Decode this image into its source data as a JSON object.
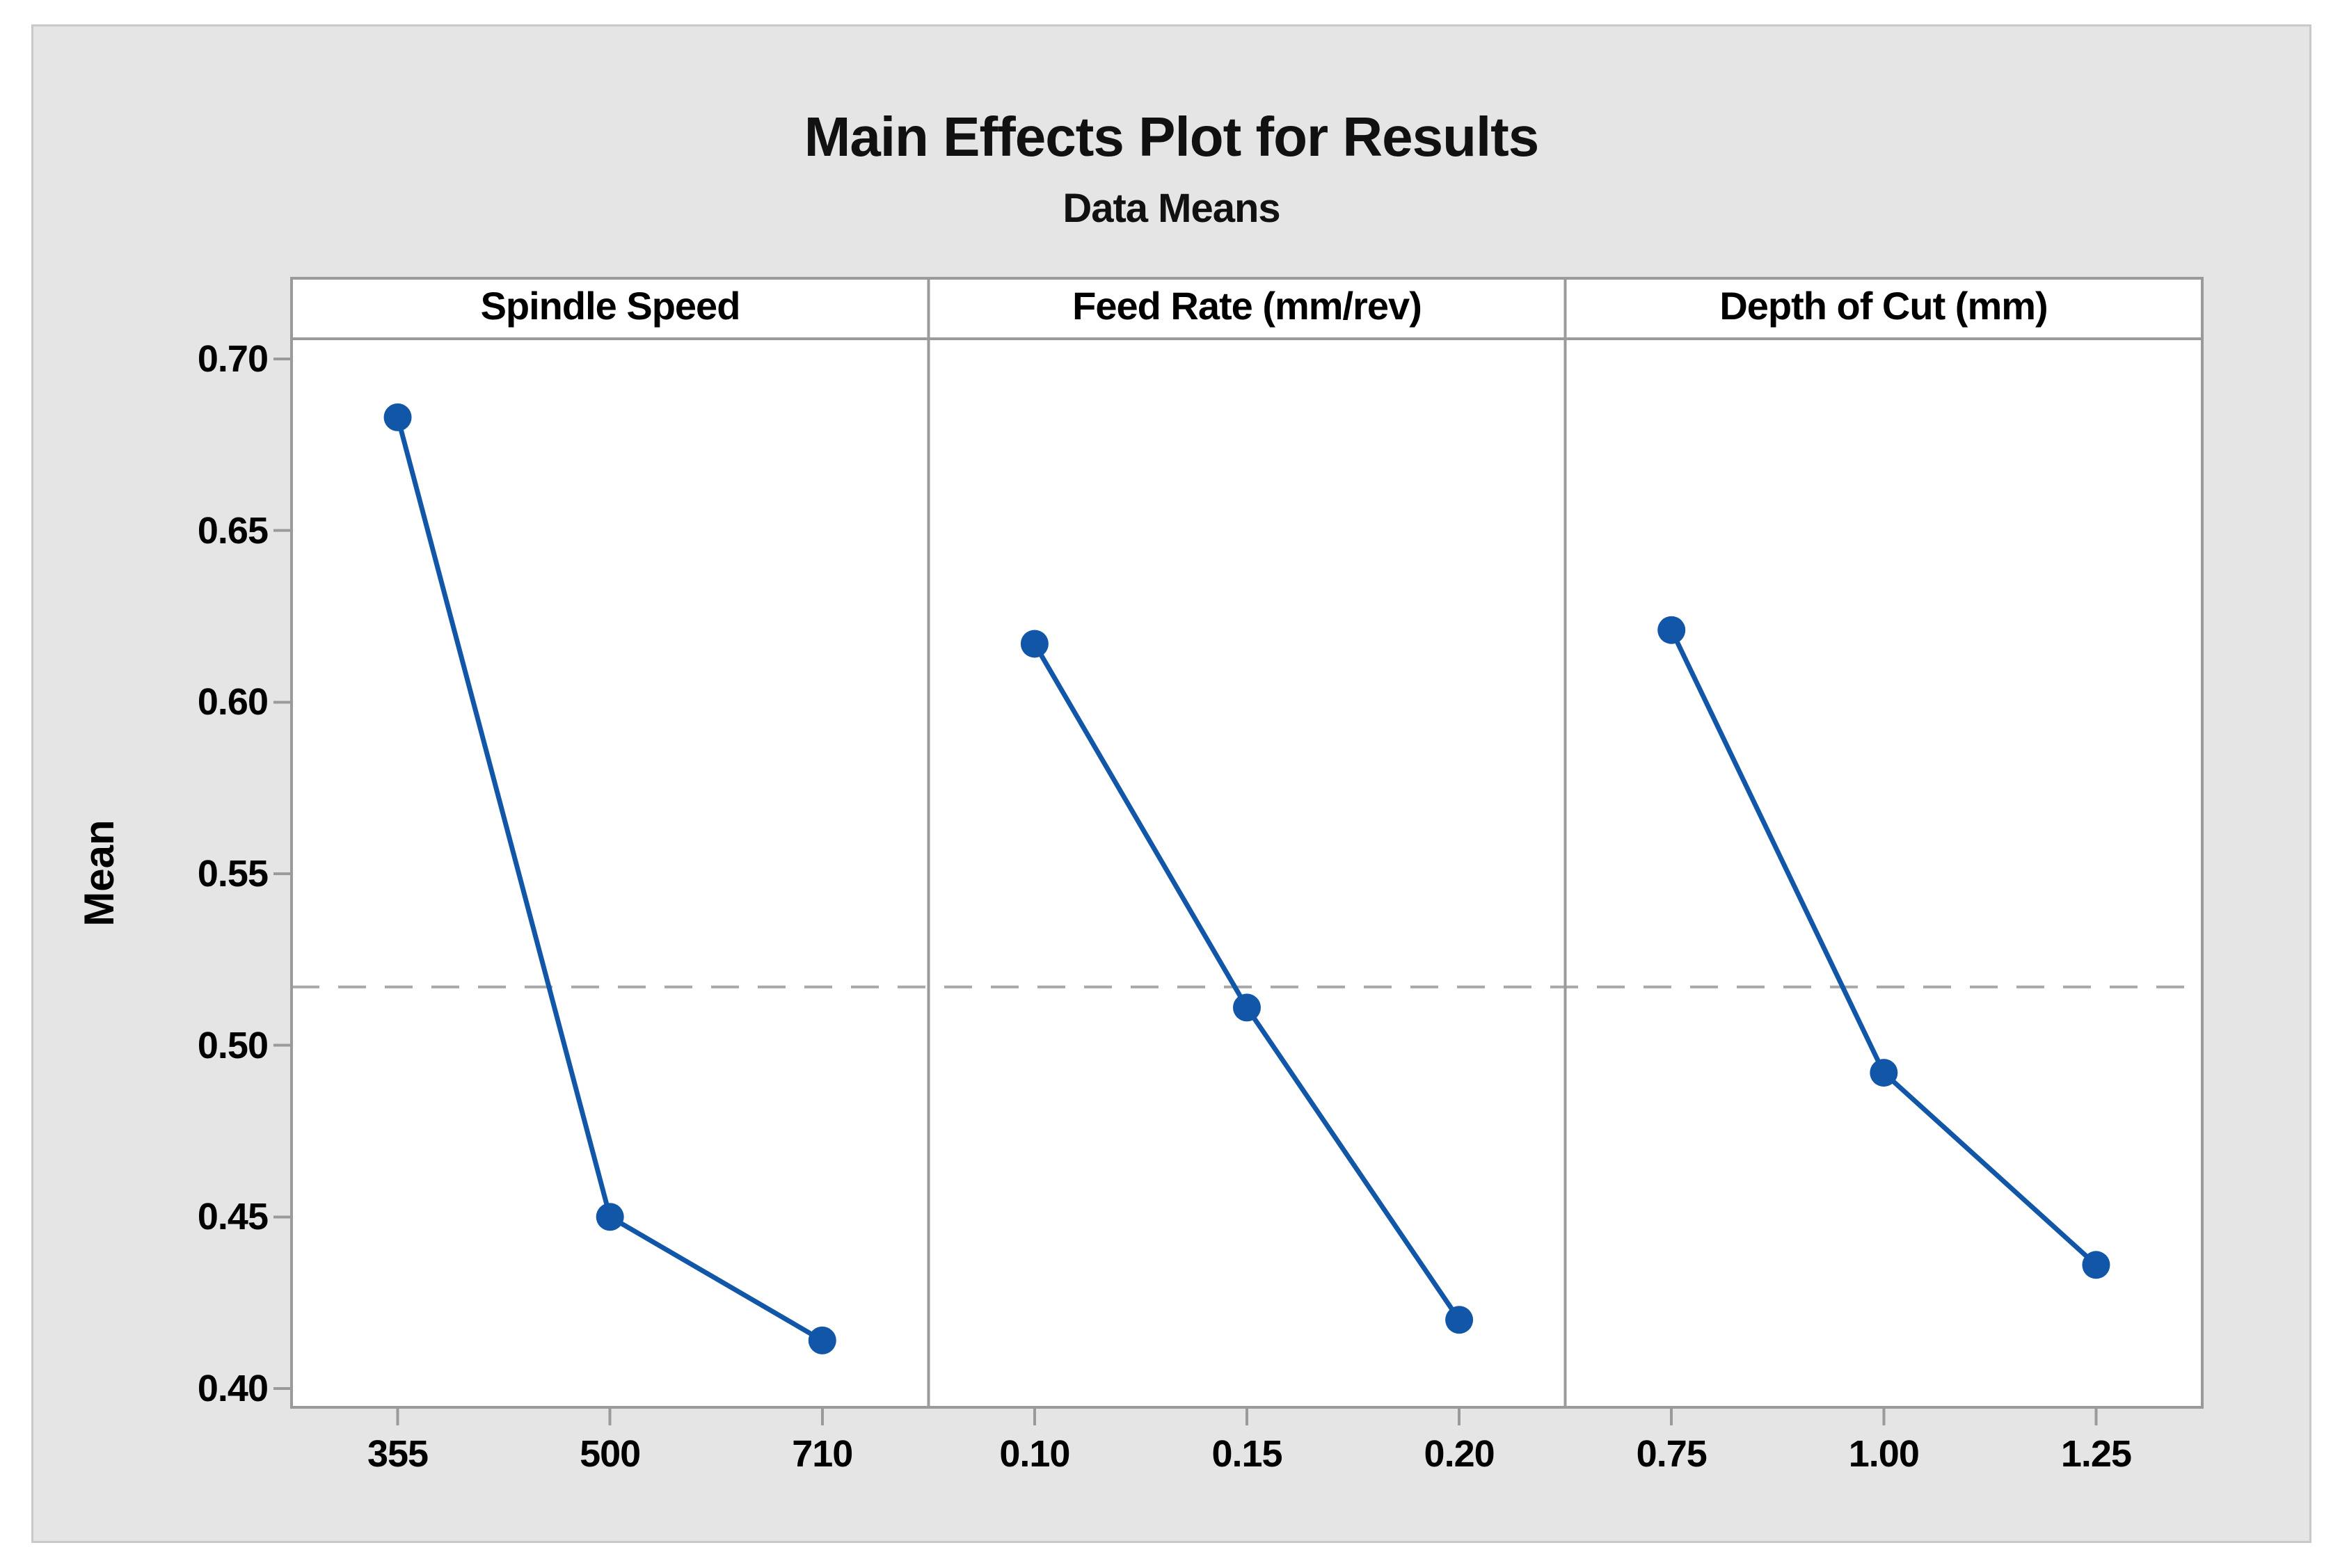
{
  "chart_data": {
    "type": "line",
    "title": "Main Effects Plot for Results",
    "subtitle": "Data Means",
    "ylabel": "Mean",
    "ytick_labels": [
      "0.70",
      "0.65",
      "0.60",
      "0.55",
      "0.50",
      "0.45",
      "0.40"
    ],
    "ylim": [
      0.3945,
      0.7059
    ],
    "grid": "off",
    "legend": "none",
    "reference_mean": 0.517,
    "reference_line_style": "dashed",
    "panels": [
      {
        "label": "Spindle Speed",
        "categories": [
          "355",
          "500",
          "710"
        ],
        "values": [
          0.683,
          0.45,
          0.414
        ]
      },
      {
        "label": "Feed Rate (mm/rev)",
        "categories": [
          "0.10",
          "0.15",
          "0.20"
        ],
        "values": [
          0.617,
          0.511,
          0.42
        ]
      },
      {
        "label": "Depth of Cut (mm)",
        "categories": [
          "0.75",
          "1.00",
          "1.25"
        ],
        "values": [
          0.621,
          0.492,
          0.436
        ]
      }
    ],
    "colors": {
      "series": "#1257A7",
      "frame": "#9A9A9A",
      "reference": "#A8A8A8",
      "figure_bg": "#E5E5E5",
      "figure_border": "#C9C9C9",
      "plot_bg": "#FFFFFF",
      "text": "#111111"
    }
  }
}
